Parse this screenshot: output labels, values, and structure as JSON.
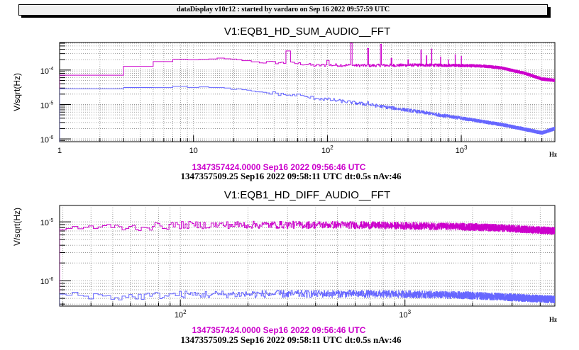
{
  "header": {
    "title": "dataDisplay v10r12 : started by vardaro on Sep 16 2022 09:57:59 UTC"
  },
  "colors": {
    "ref": "#cc00cc",
    "current_blue": "#6666ff",
    "current_black": "#000000"
  },
  "chart_data": [
    {
      "type": "line",
      "title": "V1:EQB1_HD_SUM_AUDIO__FFT",
      "xlabel": "Hz",
      "ylabel": "V/sqrt(Hz)",
      "xscale": "log",
      "yscale": "log",
      "xlim": [
        1,
        5000
      ],
      "ylim": [
        8.3e-07,
        0.00063
      ],
      "grid": true,
      "xticks": [
        {
          "v": 1,
          "label": "1"
        },
        {
          "v": 10,
          "label": "10"
        },
        {
          "v": 100,
          "label": "10",
          "sup": "2"
        },
        {
          "v": 1000,
          "label": "10",
          "sup": "3"
        }
      ],
      "yticks": [
        {
          "v": 0.0001,
          "label": "10",
          "sup": "-4"
        },
        {
          "v": 1e-05,
          "label": "10",
          "sup": "-5"
        },
        {
          "v": 1e-06,
          "label": "10",
          "sup": "-6"
        }
      ],
      "legend": [
        "1347357424.0000 Sep16 2022 09:56:46 UTC",
        "1347357509.25 Sep16 2022 09:58:11 UTC dt:0.5s nAv:46"
      ],
      "bin_hz": 2,
      "series": [
        {
          "name": "1347357424.0000 Sep16 2022 09:56:46 UTC",
          "color": "#cc00cc",
          "noise": 0.06,
          "x": [
            1,
            3,
            5,
            7,
            10,
            14,
            20,
            30,
            40,
            60,
            80,
            100,
            200,
            500,
            1000,
            1500,
            2000,
            3000,
            4000,
            5000
          ],
          "y": [
            7e-05,
            0.00013,
            0.000175,
            0.0002,
            0.000195,
            0.00022,
            0.0002,
            0.00017,
            0.000165,
            0.000155,
            0.000135,
            0.00014,
            0.000135,
            0.00014,
            0.000135,
            0.00013,
            0.000115,
            8e-05,
            5.5e-05,
            5e-05
          ],
          "peaks": [
            [
              50,
              0.00036
            ],
            [
              100,
              0.00019
            ],
            [
              150,
              0.0006
            ],
            [
              200,
              0.00042
            ],
            [
              250,
              0.00056
            ],
            [
              300,
              0.00022
            ],
            [
              400,
              0.0002
            ],
            [
              500,
              0.00038
            ],
            [
              550,
              0.00026
            ],
            [
              600,
              0.00041
            ],
            [
              700,
              0.00024
            ],
            [
              800,
              0.0002
            ],
            [
              900,
              0.00028
            ],
            [
              1000,
              0.00025
            ]
          ]
        },
        {
          "name": "1347357509.25 Sep16 2022 09:58:11 UTC",
          "color": "#6666ff",
          "noise": 0.07,
          "x": [
            1,
            3,
            7,
            12,
            20,
            30,
            40,
            60,
            100,
            200,
            500,
            1000,
            2000,
            3000,
            4000,
            5000
          ],
          "y": [
            2.8e-05,
            3e-05,
            3.3e-05,
            3.15e-05,
            2.8e-05,
            2.3e-05,
            2.1e-05,
            1.75e-05,
            1.4e-05,
            1e-05,
            6e-06,
            4e-06,
            2.6e-06,
            1.9e-06,
            1.5e-06,
            2e-06
          ],
          "peaks": [
            [
              200,
              1.2e-05
            ],
            [
              60,
              2e-05
            ]
          ]
        }
      ]
    },
    {
      "type": "line",
      "title": "V1:EQB1_HD_DIFF_AUDIO__FFT",
      "xlabel": "Hz",
      "ylabel": "V/sqrt(Hz)",
      "xscale": "log",
      "yscale": "log",
      "xlim": [
        29,
        4650
      ],
      "ylim": [
        3.7e-07,
        1.9e-05
      ],
      "grid": true,
      "xticks": [
        {
          "v": 100,
          "label": "10",
          "sup": "2"
        },
        {
          "v": 1000,
          "label": "10",
          "sup": "3"
        }
      ],
      "yticks": [
        {
          "v": 1e-05,
          "label": "10",
          "sup": "-5"
        },
        {
          "v": 1e-06,
          "label": "10",
          "sup": "-6"
        }
      ],
      "legend": [
        "1347357424.0000 Sep16 2022 09:56:46 UTC",
        "1347357509.25 Sep16 2022 09:58:11 UTC dt:0.5s nAv:46"
      ],
      "bin_hz": 2,
      "series": [
        {
          "name": "1347357424.0000 Sep16 2022 09:56:46 UTC",
          "color": "#cc00cc",
          "noise": 0.09,
          "x": [
            29,
            40,
            60,
            100,
            200,
            500,
            1000,
            2000,
            3000,
            4650
          ],
          "y": [
            7.6e-06,
            8.2e-06,
            8e-06,
            8.8e-06,
            8.9e-06,
            8.9e-06,
            8.6e-06,
            8.2e-06,
            7.7e-06,
            7e-06
          ],
          "peaks": []
        },
        {
          "name": "1347357509.25 Sep16 2022 09:58:11 UTC",
          "color": "#6666ff",
          "noise": 0.09,
          "x": [
            29,
            40,
            50,
            70,
            100,
            200,
            500,
            1000,
            2000,
            3000,
            4650
          ],
          "y": [
            6e-07,
            5.6e-07,
            5.2e-07,
            5.5e-07,
            5.8e-07,
            5.9e-07,
            6e-07,
            5.9e-07,
            5.6e-07,
            5.2e-07,
            4.8e-07
          ],
          "peaks": []
        }
      ]
    }
  ]
}
